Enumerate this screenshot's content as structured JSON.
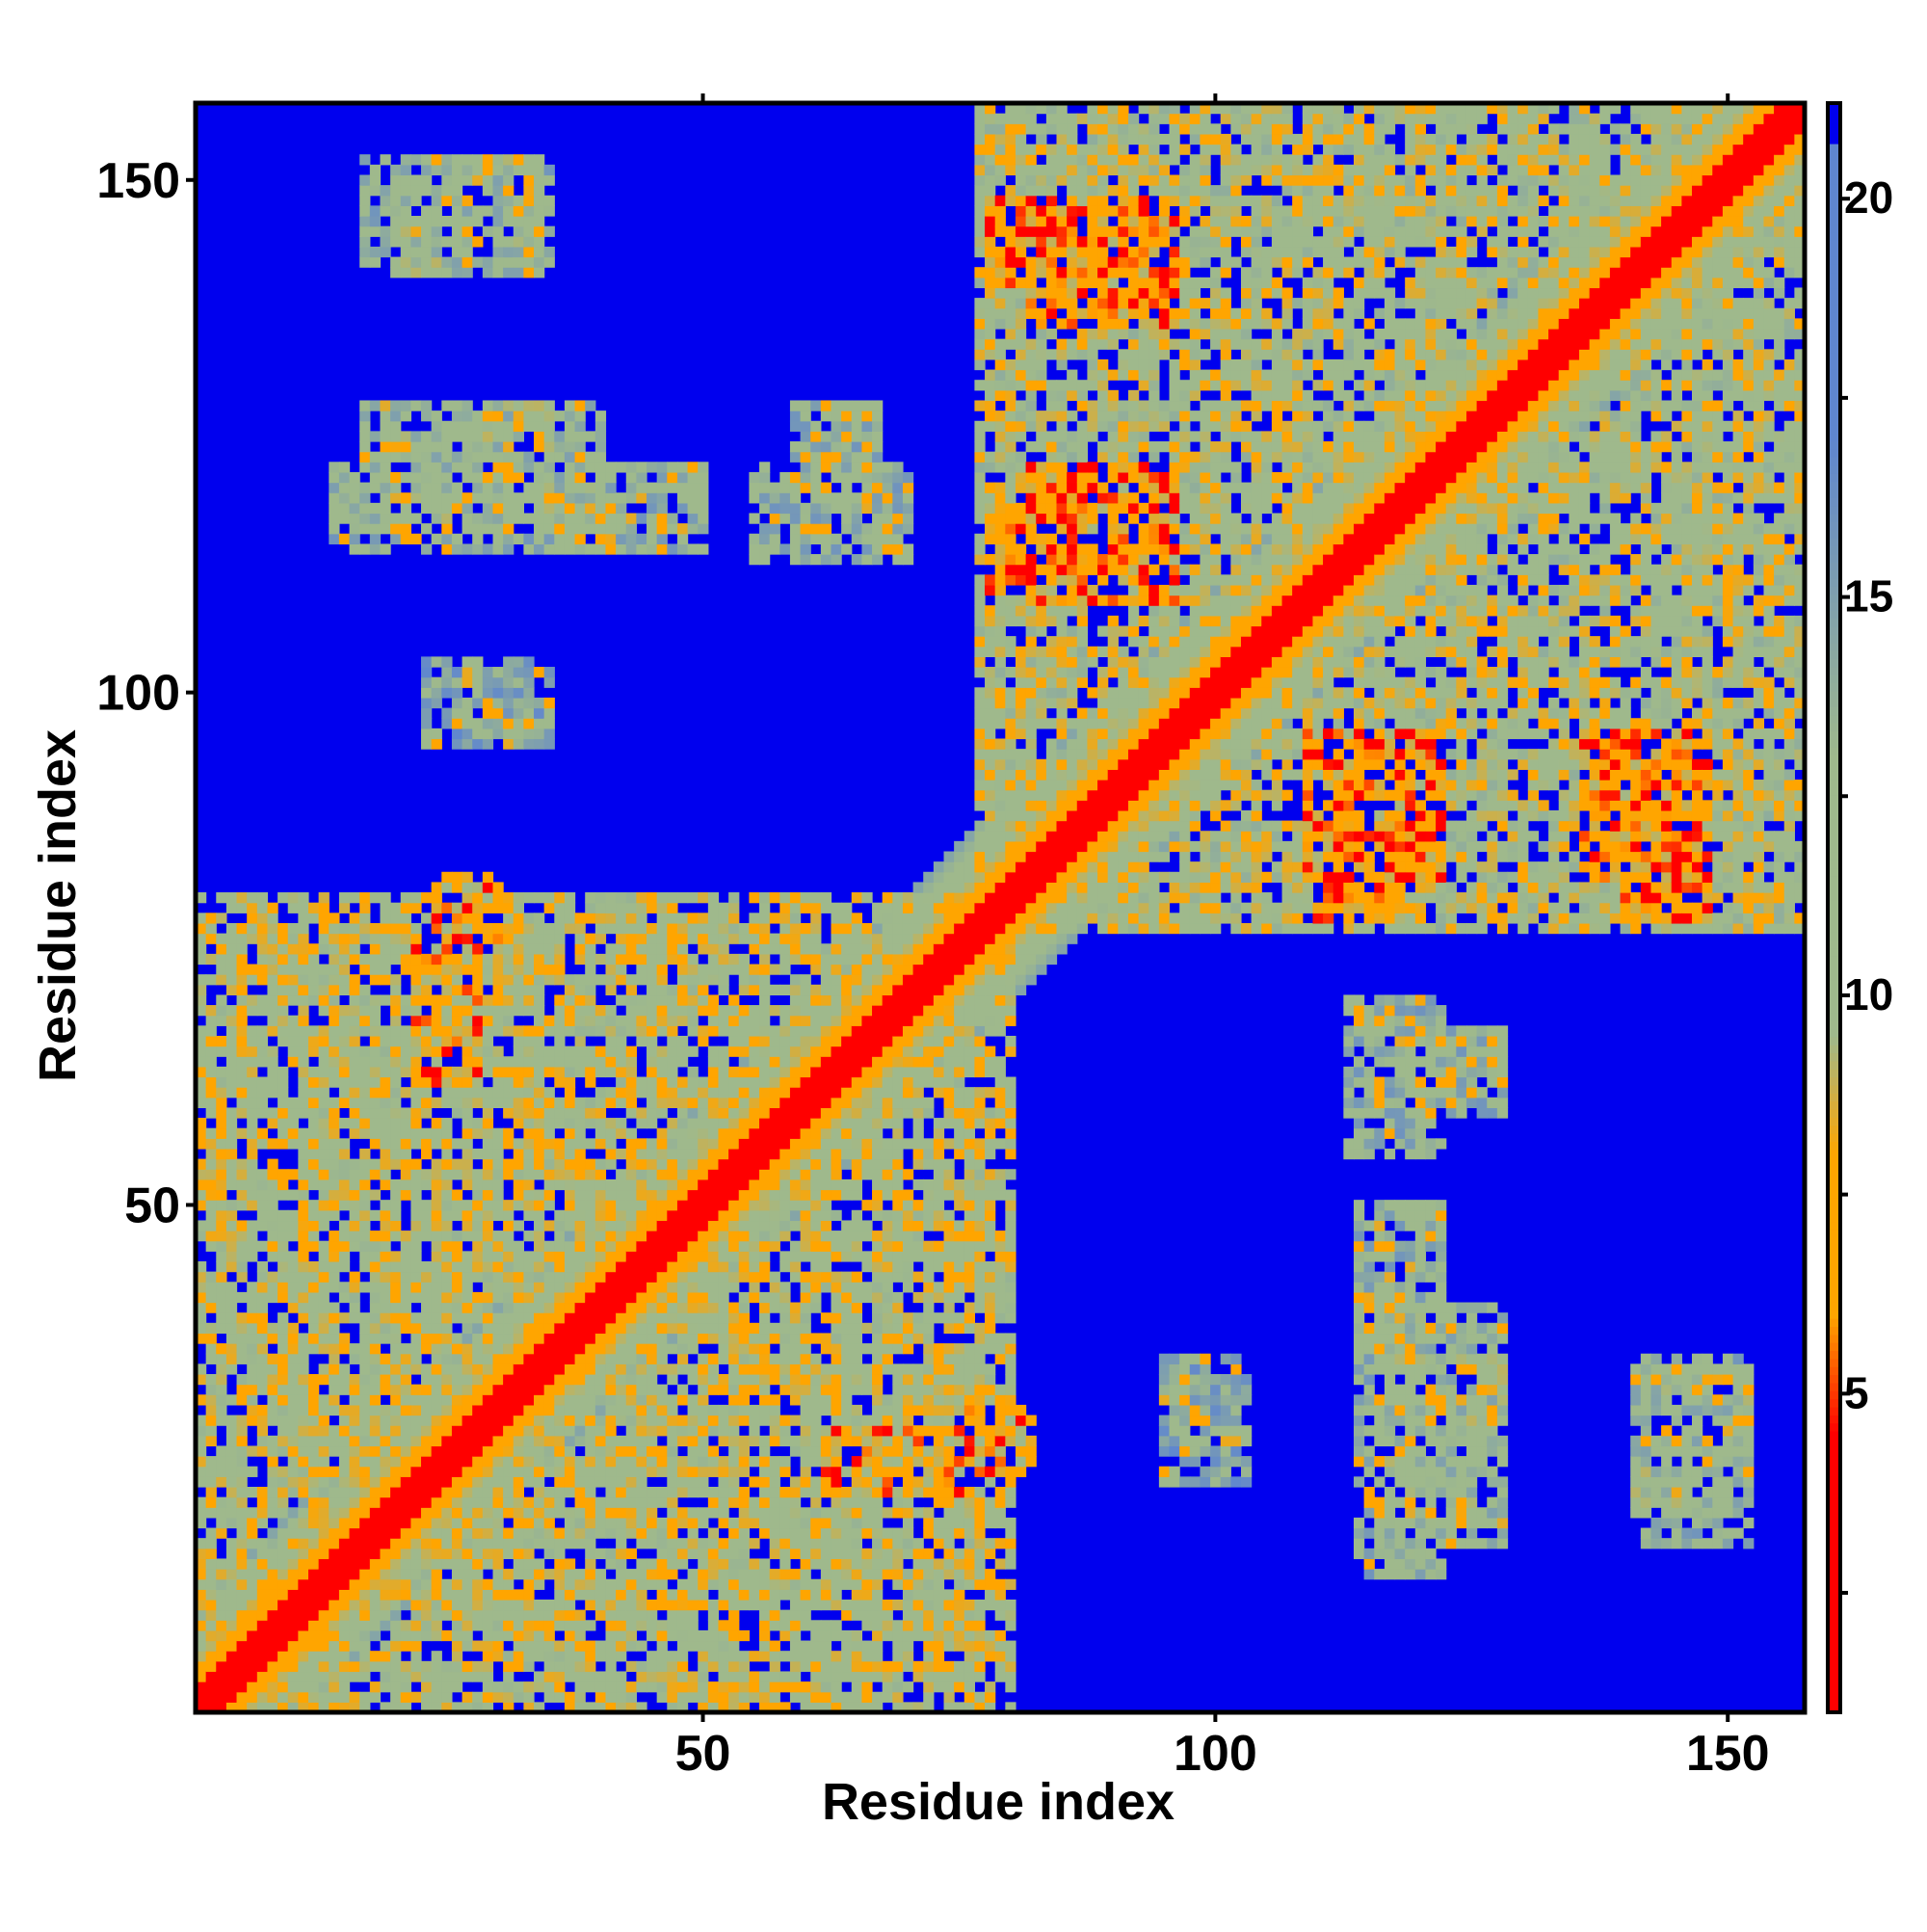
{
  "chart_data": {
    "type": "heatmap",
    "title": "",
    "xlabel": "Residue index",
    "ylabel": "Residue index",
    "xlim": [
      1,
      157
    ],
    "ylim": [
      1,
      157
    ],
    "x_ticks": [
      50,
      100,
      150
    ],
    "y_ticks": [
      50,
      100,
      150
    ],
    "x_tick_labels": [
      "50",
      "100",
      "150"
    ],
    "y_tick_labels": [
      "50",
      "100",
      "150"
    ],
    "colorbar": {
      "range": [
        1,
        21.2
      ],
      "ticks": [
        5,
        10,
        15,
        20
      ],
      "tick_labels": [
        "5",
        "10",
        "15",
        "20"
      ],
      "colors": {
        "close": "#ff0000",
        "near": "#ffa500",
        "mid": "#9fb98c",
        "far": "#5f86cf",
        "background": "#0000ee"
      }
    },
    "symmetric": true,
    "diagonal_value": 1,
    "contact_blocks": [
      {
        "x": [
          1,
          80
        ],
        "y": [
          1,
          80
        ],
        "value": 10.5
      },
      {
        "x": [
          77,
          157
        ],
        "y": [
          77,
          157
        ],
        "value": 11
      },
      {
        "x": [
          78,
          84
        ],
        "y": [
          140,
          148
        ],
        "value": 6
      },
      {
        "x": [
          78,
          86
        ],
        "y": [
          110,
          118
        ],
        "value": 6.5
      },
      {
        "x": [
          109,
          122
        ],
        "y": [
          82,
          96
        ],
        "value": 6.5
      },
      {
        "x": [
          136,
          148
        ],
        "y": [
          82,
          96
        ],
        "value": 6.5
      },
      {
        "x": [
          24,
          30
        ],
        "y": [
          74,
          82
        ],
        "value": 7
      },
      {
        "x": [
          62,
          75
        ],
        "y": [
          22,
          28
        ],
        "value": 7
      },
      {
        "x": [
          14,
          50
        ],
        "y": [
          114,
          122
        ],
        "value": 13
      },
      {
        "x": [
          17,
          35
        ],
        "y": [
          142,
          152
        ],
        "value": 13
      },
      {
        "x": [
          55,
          70
        ],
        "y": [
          113,
          122
        ],
        "value": 13
      },
      {
        "x": [
          118,
          128
        ],
        "y": [
          59,
          67
        ],
        "value": 13
      },
      {
        "x": [
          116,
          128
        ],
        "y": [
          17,
          40
        ],
        "value": 12
      },
      {
        "x": [
          141,
          152
        ],
        "y": [
          19,
          34
        ],
        "value": 12
      },
      {
        "x": [
          95,
          103
        ],
        "y": [
          23,
          35
        ],
        "value": 14
      }
    ]
  }
}
